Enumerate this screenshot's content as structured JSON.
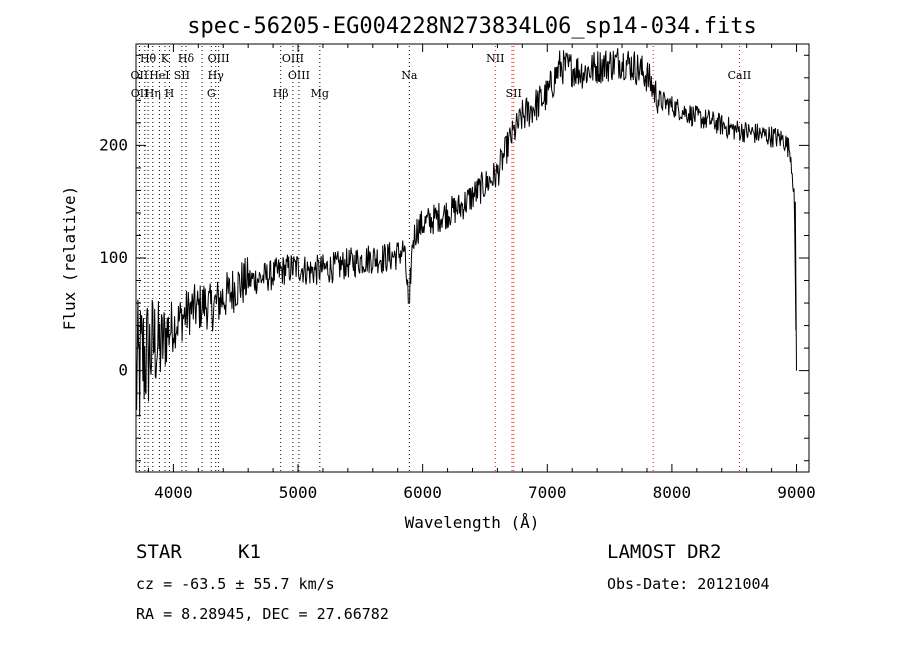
{
  "chart_data": {
    "type": "line",
    "title": "spec-56205-EG004228N273834L06_sp14-034.fits",
    "xlabel": "Wavelength (Å)",
    "ylabel": "Flux (relative)",
    "xlim": [
      3700,
      9100
    ],
    "ylim": [
      -90,
      290
    ],
    "xticks": [
      4000,
      5000,
      6000,
      7000,
      8000,
      9000
    ],
    "yticks": [
      0,
      100,
      200
    ],
    "grid": false,
    "series": [
      {
        "x": [
          3700,
          3750,
          3800,
          3850,
          3900,
          3950,
          4000,
          4050,
          4100,
          4150,
          4200,
          4250,
          4300,
          4350,
          4400,
          4450,
          4500,
          4600,
          4700,
          4800,
          4850,
          4900,
          5000,
          5100,
          5200,
          5300,
          5400,
          5500,
          5600,
          5700,
          5800,
          5850,
          5890,
          5920,
          5950,
          6000,
          6100,
          6200,
          6300,
          6400,
          6500,
          6600,
          6700,
          6800,
          6900,
          7000,
          7100,
          7200,
          7300,
          7400,
          7500,
          7600,
          7700,
          7800,
          7850,
          7900,
          8000,
          8100,
          8200,
          8300,
          8400,
          8500,
          8600,
          8700,
          8800,
          8900,
          8950,
          8980,
          9000
        ],
        "y": [
          -10,
          10,
          15,
          25,
          20,
          35,
          40,
          45,
          50,
          55,
          55,
          60,
          55,
          60,
          65,
          68,
          75,
          80,
          82,
          85,
          88,
          90,
          92,
          88,
          90,
          92,
          95,
          98,
          100,
          100,
          103,
          108,
          60,
          115,
          125,
          130,
          135,
          140,
          145,
          155,
          165,
          175,
          205,
          225,
          235,
          245,
          270,
          268,
          265,
          270,
          272,
          275,
          270,
          262,
          250,
          240,
          235,
          230,
          225,
          222,
          218,
          214,
          212,
          210,
          208,
          205,
          195,
          160,
          0
        ]
      }
    ],
    "line_markers": [
      {
        "label": "Hθ",
        "wavelength": 3797,
        "color": "#000000",
        "row": 1
      },
      {
        "label": "K",
        "wavelength": 3933,
        "color": "#000000",
        "row": 1
      },
      {
        "label": "Hδ",
        "wavelength": 4101,
        "color": "#000000",
        "row": 1
      },
      {
        "label": "OIII",
        "wavelength": 4363,
        "color": "#000000",
        "row": 1
      },
      {
        "label": "OIII",
        "wavelength": 4959,
        "color": "#000000",
        "row": 1
      },
      {
        "label": "NII",
        "wavelength": 6583,
        "color": "#ff0000",
        "row": 1
      },
      {
        "label": "OII",
        "wavelength": 3727,
        "color": "#000000",
        "row": 2
      },
      {
        "label": "HeI",
        "wavelength": 3888,
        "color": "#000000",
        "row": 2
      },
      {
        "label": "SII",
        "wavelength": 4068,
        "color": "#000000",
        "row": 2
      },
      {
        "label": "Hγ",
        "wavelength": 4340,
        "color": "#000000",
        "row": 2
      },
      {
        "label": "OIII",
        "wavelength": 5007,
        "color": "#000000",
        "row": 2
      },
      {
        "label": "Na",
        "wavelength": 5893,
        "color": "#000000",
        "row": 2
      },
      {
        "label": "CaII",
        "wavelength": 8542,
        "color": "#ff0000",
        "row": 2
      },
      {
        "label": "OII",
        "wavelength": 3729,
        "color": "#000000",
        "row": 3
      },
      {
        "label": "Hη",
        "wavelength": 3835,
        "color": "#000000",
        "row": 3
      },
      {
        "label": "H",
        "wavelength": 3968,
        "color": "#000000",
        "row": 3
      },
      {
        "label": "G",
        "wavelength": 4304,
        "color": "#000000",
        "row": 3
      },
      {
        "label": "Hβ",
        "wavelength": 4861,
        "color": "#000000",
        "row": 3
      },
      {
        "label": "Mg",
        "wavelength": 5175,
        "color": "#000000",
        "row": 3
      },
      {
        "label": "SII",
        "wavelength": 6731,
        "color": "#ff0000",
        "row": 3
      }
    ],
    "extra_marker_lines": [
      {
        "wavelength": 3771,
        "color": "#000000"
      },
      {
        "wavelength": 4230,
        "color": "#000000"
      },
      {
        "wavelength": 6717,
        "color": "#ff0000"
      },
      {
        "wavelength": 7850,
        "color": "#ff0000"
      }
    ]
  },
  "info": {
    "object_class": "STAR",
    "subclass": "K1",
    "survey": "LAMOST DR2",
    "redshift_line": "cz = -63.5 ± 55.7 km/s",
    "obs_date": "Obs-Date: 20121004",
    "coords": "RA =   8.28945, DEC =  27.66782"
  }
}
